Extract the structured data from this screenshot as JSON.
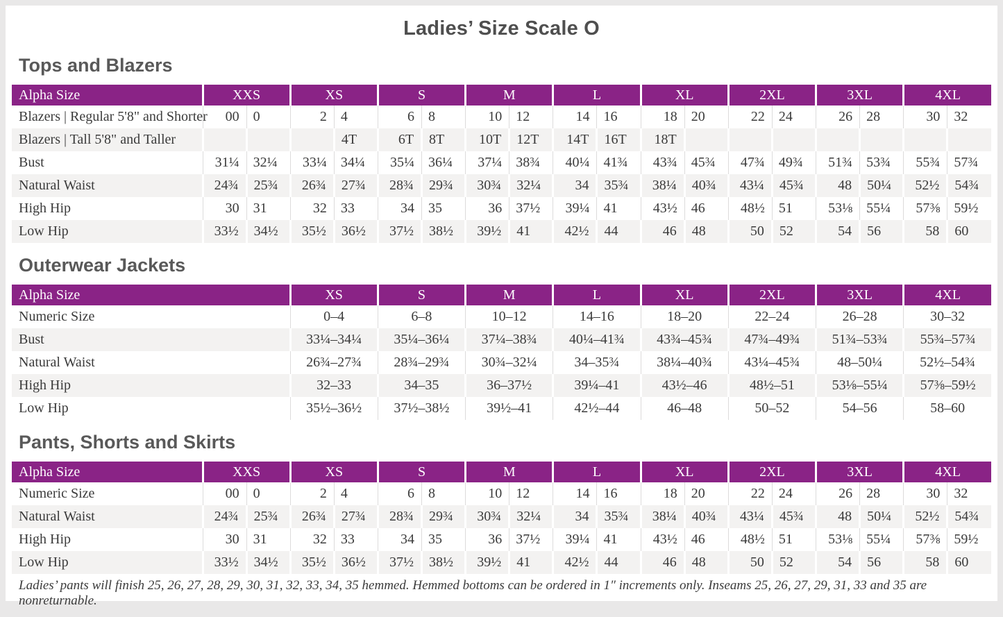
{
  "title": "Ladies’ Size Scale O",
  "accent_color": "#8a2386",
  "alt_row_color": "#f3f2f1",
  "footnote": "Ladies’ pants will finish 25, 26, 27, 28, 29, 30, 31, 32, 33, 34, 35 hemmed. Hemmed bottoms can be ordered in 1″ increments only. Inseams 25, 26, 27, 29, 31, 33 and 35 are nonreturnable.",
  "sections": [
    {
      "heading": "Tops and Blazers",
      "type": "paired",
      "header_label": "Alpha Size",
      "sizes": [
        "XXS",
        "XS",
        "S",
        "M",
        "L",
        "XL",
        "2XL",
        "3XL",
        "4XL"
      ],
      "rows": [
        {
          "label": "Blazers | Regular 5'8\" and Shorter",
          "cells": [
            [
              "00",
              "0"
            ],
            [
              "2",
              "4"
            ],
            [
              "6",
              "8"
            ],
            [
              "10",
              "12"
            ],
            [
              "14",
              "16"
            ],
            [
              "18",
              "20"
            ],
            [
              "22",
              "24"
            ],
            [
              "26",
              "28"
            ],
            [
              "30",
              "32"
            ]
          ]
        },
        {
          "label": "Blazers | Tall 5'8\" and Taller",
          "cells": [
            [
              "",
              ""
            ],
            [
              "",
              "4T"
            ],
            [
              "6T",
              "8T"
            ],
            [
              "10T",
              "12T"
            ],
            [
              "14T",
              "16T"
            ],
            [
              "18T",
              ""
            ],
            [
              "",
              ""
            ],
            [
              "",
              ""
            ],
            [
              "",
              ""
            ]
          ]
        },
        {
          "label": "Bust",
          "cells": [
            [
              "31¼",
              "32¼"
            ],
            [
              "33¼",
              "34¼"
            ],
            [
              "35¼",
              "36¼"
            ],
            [
              "37¼",
              "38¾"
            ],
            [
              "40¼",
              "41¾"
            ],
            [
              "43¾",
              "45¾"
            ],
            [
              "47¾",
              "49¾"
            ],
            [
              "51¾",
              "53¾"
            ],
            [
              "55¾",
              "57¾"
            ]
          ]
        },
        {
          "label": "Natural Waist",
          "cells": [
            [
              "24¾",
              "25¾"
            ],
            [
              "26¾",
              "27¾"
            ],
            [
              "28¾",
              "29¾"
            ],
            [
              "30¾",
              "32¼"
            ],
            [
              "34",
              "35¾"
            ],
            [
              "38¼",
              "40¾"
            ],
            [
              "43¼",
              "45¾"
            ],
            [
              "48",
              "50¼"
            ],
            [
              "52½",
              "54¾"
            ]
          ]
        },
        {
          "label": "High Hip",
          "cells": [
            [
              "30",
              "31"
            ],
            [
              "32",
              "33"
            ],
            [
              "34",
              "35"
            ],
            [
              "36",
              "37½"
            ],
            [
              "39¼",
              "41"
            ],
            [
              "43½",
              "46"
            ],
            [
              "48½",
              "51"
            ],
            [
              "53⅛",
              "55¼"
            ],
            [
              "57⅜",
              "59½"
            ]
          ]
        },
        {
          "label": "Low Hip",
          "cells": [
            [
              "33½",
              "34½"
            ],
            [
              "35½",
              "36½"
            ],
            [
              "37½",
              "38½"
            ],
            [
              "39½",
              "41"
            ],
            [
              "42½",
              "44"
            ],
            [
              "46",
              "48"
            ],
            [
              "50",
              "52"
            ],
            [
              "54",
              "56"
            ],
            [
              "58",
              "60"
            ]
          ]
        }
      ]
    },
    {
      "heading": "Outerwear Jackets",
      "type": "range",
      "header_label": "Alpha Size",
      "sizes": [
        "XS",
        "S",
        "M",
        "L",
        "XL",
        "2XL",
        "3XL",
        "4XL"
      ],
      "rows": [
        {
          "label": "Numeric Size",
          "cells": [
            "0–4",
            "6–8",
            "10–12",
            "14–16",
            "18–20",
            "22–24",
            "26–28",
            "30–32"
          ]
        },
        {
          "label": "Bust",
          "cells": [
            "33¼–34¼",
            "35¼–36¼",
            "37¼–38¾",
            "40¼–41¾",
            "43¾–45¾",
            "47¾–49¾",
            "51¾–53¾",
            "55¾–57¾"
          ]
        },
        {
          "label": "Natural Waist",
          "cells": [
            "26¾–27¾",
            "28¾–29¾",
            "30¾–32¼",
            "34–35¾",
            "38¼–40¾",
            "43¼–45¾",
            "48–50¼",
            "52½–54¾"
          ]
        },
        {
          "label": "High Hip",
          "cells": [
            "32–33",
            "34–35",
            "36–37½",
            "39¼–41",
            "43½–46",
            "48½–51",
            "53⅛–55¼",
            "57⅜–59½"
          ]
        },
        {
          "label": "Low Hip",
          "cells": [
            "35½–36½",
            "37½–38½",
            "39½–41",
            "42½–44",
            "46–48",
            "50–52",
            "54–56",
            "58–60"
          ]
        }
      ]
    },
    {
      "heading": "Pants, Shorts and Skirts",
      "type": "paired",
      "header_label": "Alpha Size",
      "sizes": [
        "XXS",
        "XS",
        "S",
        "M",
        "L",
        "XL",
        "2XL",
        "3XL",
        "4XL"
      ],
      "rows": [
        {
          "label": "Numeric Size",
          "cells": [
            [
              "00",
              "0"
            ],
            [
              "2",
              "4"
            ],
            [
              "6",
              "8"
            ],
            [
              "10",
              "12"
            ],
            [
              "14",
              "16"
            ],
            [
              "18",
              "20"
            ],
            [
              "22",
              "24"
            ],
            [
              "26",
              "28"
            ],
            [
              "30",
              "32"
            ]
          ]
        },
        {
          "label": "Natural Waist",
          "cells": [
            [
              "24¾",
              "25¾"
            ],
            [
              "26¾",
              "27¾"
            ],
            [
              "28¾",
              "29¾"
            ],
            [
              "30¾",
              "32¼"
            ],
            [
              "34",
              "35¾"
            ],
            [
              "38¼",
              "40¾"
            ],
            [
              "43¼",
              "45¾"
            ],
            [
              "48",
              "50¼"
            ],
            [
              "52½",
              "54¾"
            ]
          ]
        },
        {
          "label": "High Hip",
          "cells": [
            [
              "30",
              "31"
            ],
            [
              "32",
              "33"
            ],
            [
              "34",
              "35"
            ],
            [
              "36",
              "37½"
            ],
            [
              "39¼",
              "41"
            ],
            [
              "43½",
              "46"
            ],
            [
              "48½",
              "51"
            ],
            [
              "53⅛",
              "55¼"
            ],
            [
              "57⅜",
              "59½"
            ]
          ]
        },
        {
          "label": "Low Hip",
          "cells": [
            [
              "33½",
              "34½"
            ],
            [
              "35½",
              "36½"
            ],
            [
              "37½",
              "38½"
            ],
            [
              "39½",
              "41"
            ],
            [
              "42½",
              "44"
            ],
            [
              "46",
              "48"
            ],
            [
              "50",
              "52"
            ],
            [
              "54",
              "56"
            ],
            [
              "58",
              "60"
            ]
          ]
        }
      ]
    }
  ]
}
